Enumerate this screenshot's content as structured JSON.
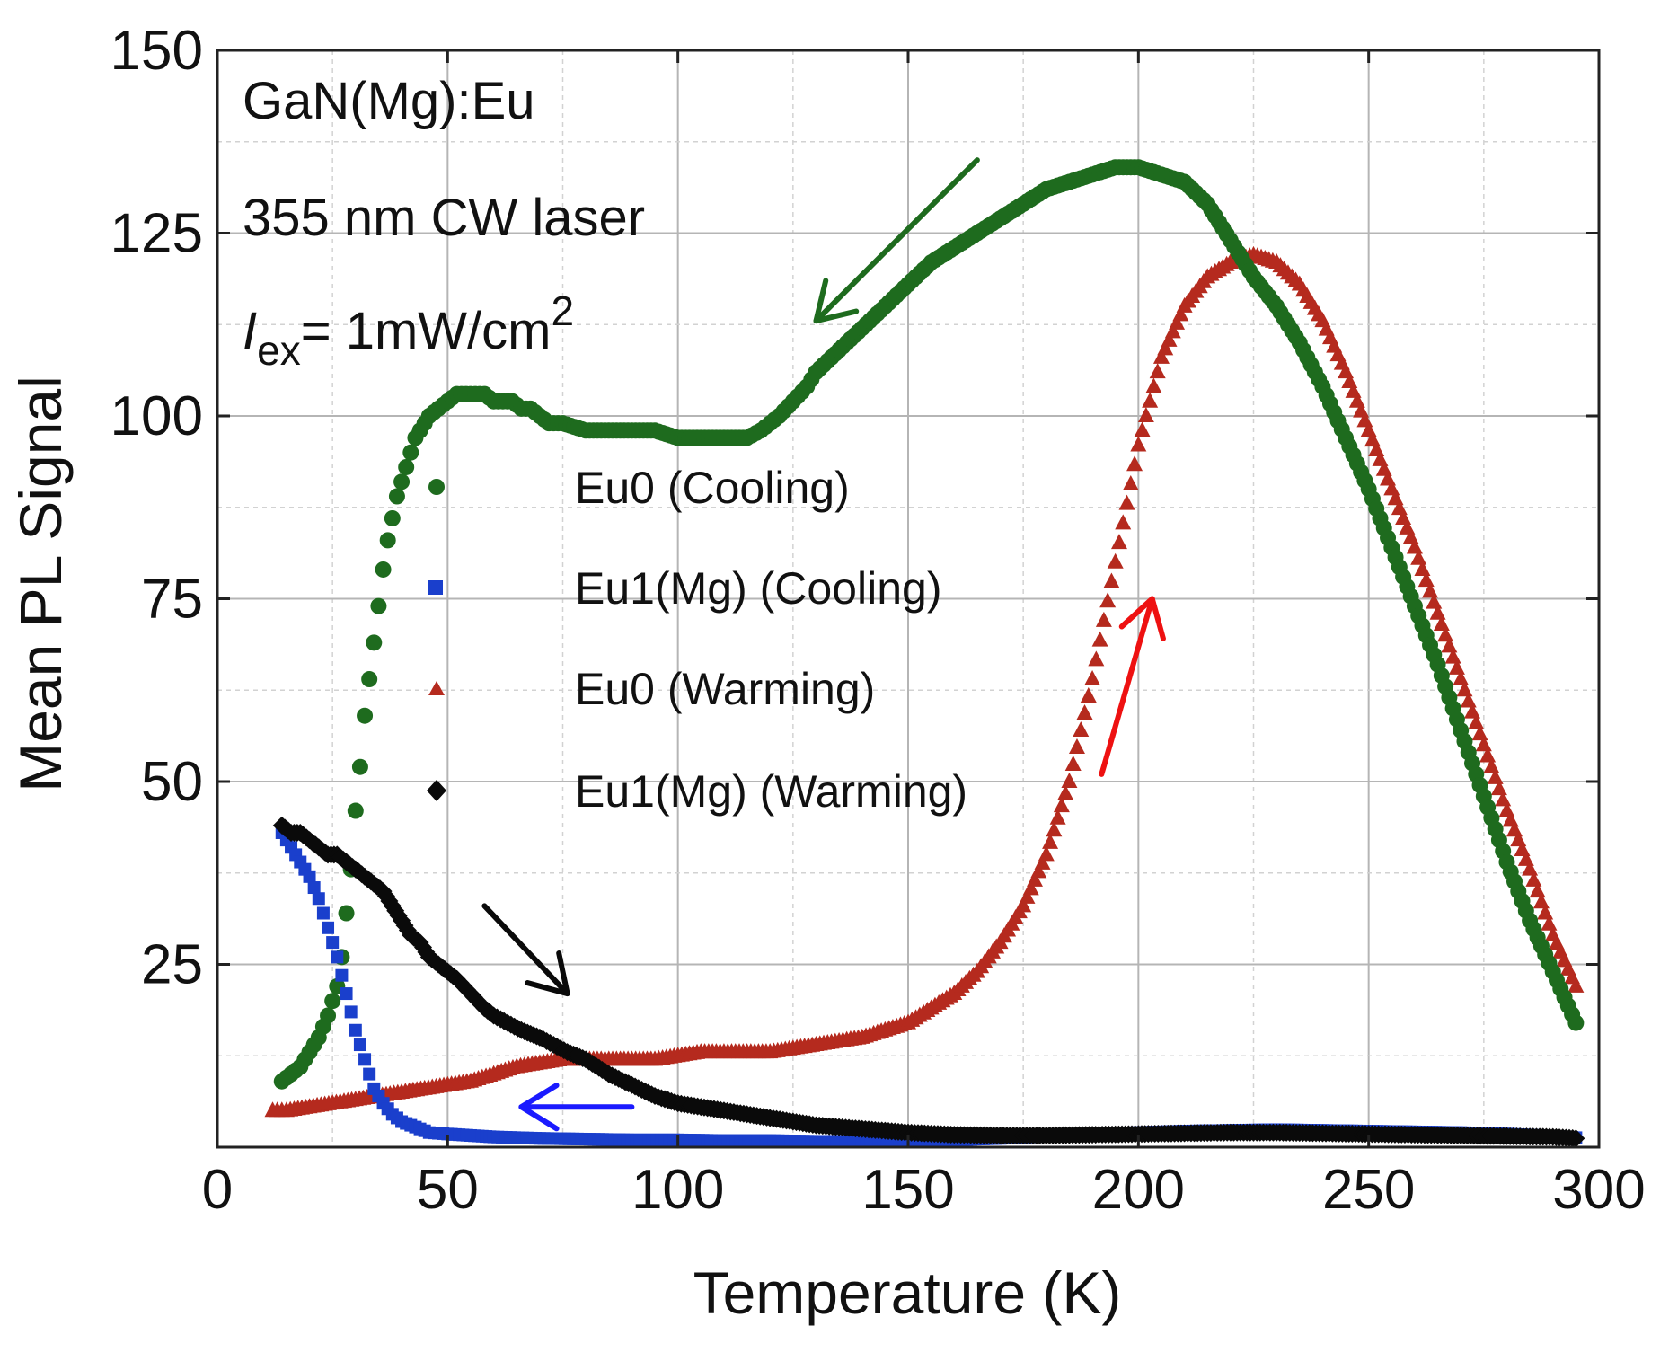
{
  "chart_data": {
    "type": "scatter",
    "title": "",
    "xlabel": "Temperature (K)",
    "ylabel": "Mean PL Signal",
    "xlim": [
      0,
      300
    ],
    "ylim": [
      0,
      150
    ],
    "x_ticks": [
      0,
      50,
      100,
      150,
      200,
      250,
      300
    ],
    "y_ticks": [
      25,
      50,
      75,
      100,
      125,
      150
    ],
    "x_tick_labels": [
      "0",
      "50",
      "100",
      "150",
      "200",
      "250",
      "300"
    ],
    "y_tick_labels": [
      "25",
      "50",
      "75",
      "100",
      "125",
      "150"
    ],
    "grid": true,
    "legend_position": "center",
    "annotations": {
      "sample": "GaN(Mg):Eu",
      "laser": "355 nm CW laser",
      "intensity_prefix": "I",
      "intensity_sub": "ex",
      "intensity_value": "= 1mW/cm",
      "intensity_sup": "2"
    },
    "series": [
      {
        "name": "Eu0 (Cooling)",
        "marker": "circle",
        "color": "#1e6b1e",
        "arrow_color": "#1e6b1e",
        "x": [
          14,
          16,
          18,
          20,
          22,
          24,
          26,
          27,
          28,
          29,
          30,
          31,
          32,
          33,
          34,
          35,
          36,
          37,
          38,
          39,
          40,
          41,
          42,
          43,
          44,
          45,
          46,
          48,
          50,
          52,
          54,
          56,
          58,
          60,
          62,
          64,
          66,
          68,
          70,
          72,
          75,
          80,
          85,
          90,
          95,
          100,
          105,
          110,
          115,
          118,
          120,
          122,
          125,
          128,
          130,
          135,
          140,
          145,
          150,
          155,
          160,
          165,
          170,
          175,
          180,
          185,
          190,
          195,
          200,
          205,
          210,
          215,
          220,
          225,
          230,
          235,
          240,
          245,
          250,
          255,
          260,
          265,
          270,
          275,
          280,
          285,
          290,
          295
        ],
        "y": [
          9,
          10,
          11,
          13,
          15,
          18,
          22,
          26,
          32,
          38,
          46,
          52,
          59,
          64,
          69,
          74,
          79,
          83,
          86,
          89,
          91,
          93,
          95,
          97,
          98,
          99,
          100,
          101,
          102,
          103,
          103,
          103,
          103,
          102,
          102,
          102,
          101,
          101,
          100,
          99,
          99,
          98,
          98,
          98,
          98,
          97,
          97,
          97,
          97,
          98,
          99,
          100,
          102,
          104,
          106,
          109,
          112,
          115,
          118,
          121,
          123,
          125,
          127,
          129,
          131,
          132,
          133,
          134,
          134,
          133,
          132,
          129,
          124,
          119,
          115,
          110,
          104,
          97,
          90,
          82,
          74,
          66,
          57,
          48,
          39,
          31,
          24,
          17
        ]
      },
      {
        "name": "Eu1(Mg) (Cooling)",
        "marker": "square",
        "color": "#1a3fcc",
        "arrow_color": "#1a1aff",
        "x": [
          14,
          16,
          18,
          20,
          22,
          24,
          26,
          28,
          30,
          32,
          34,
          36,
          38,
          40,
          42,
          44,
          46,
          50,
          55,
          60,
          70,
          80,
          90,
          100,
          110,
          120,
          130,
          140,
          150,
          160,
          170,
          180,
          190,
          200,
          210,
          220,
          230,
          240,
          250,
          260,
          270,
          280,
          290,
          295
        ],
        "y": [
          43,
          41,
          39,
          37,
          34,
          30,
          26,
          21,
          16,
          12,
          8,
          6,
          4.5,
          3.5,
          3,
          2.5,
          2,
          1.8,
          1.6,
          1.4,
          1.2,
          1.1,
          1,
          1,
          0.9,
          0.9,
          0.8,
          0.8,
          0.8,
          1,
          1.2,
          1.5,
          1.8,
          2,
          2.2,
          2.3,
          2.4,
          2.3,
          2.2,
          2.1,
          2,
          1.8,
          1.5,
          1.3
        ]
      },
      {
        "name": "Eu0 (Warming)",
        "marker": "triangle",
        "color": "#b52a1e",
        "arrow_color": "#ee1111",
        "x": [
          12,
          15,
          20,
          25,
          30,
          35,
          40,
          45,
          50,
          55,
          60,
          65,
          70,
          75,
          80,
          85,
          90,
          95,
          100,
          105,
          110,
          115,
          120,
          125,
          130,
          135,
          140,
          145,
          150,
          155,
          160,
          165,
          170,
          175,
          180,
          185,
          190,
          195,
          200,
          205,
          210,
          215,
          220,
          225,
          230,
          235,
          240,
          245,
          250,
          255,
          260,
          265,
          270,
          275,
          280,
          285,
          290,
          295
        ],
        "y": [
          5,
          5,
          5.5,
          6,
          6.5,
          7,
          7.5,
          8,
          8.5,
          9,
          10,
          11,
          11.5,
          12,
          12,
          12,
          12,
          12,
          12.5,
          13,
          13,
          13,
          13,
          13.5,
          14,
          14.5,
          15,
          16,
          17,
          19,
          21,
          24,
          28,
          33,
          40,
          50,
          64,
          80,
          96,
          108,
          115,
          119,
          121,
          122,
          121,
          118,
          113,
          106,
          98,
          90,
          82,
          73,
          64,
          55,
          46,
          38,
          29,
          22
        ]
      },
      {
        "name": "Eu1(Mg) (Warming)",
        "marker": "diamond",
        "color": "#0a0a0a",
        "arrow_color": "#0a0a0a",
        "x": [
          14,
          16,
          18,
          20,
          22,
          24,
          26,
          28,
          30,
          32,
          34,
          36,
          38,
          40,
          42,
          44,
          46,
          48,
          50,
          52,
          55,
          58,
          60,
          63,
          66,
          70,
          73,
          76,
          80,
          85,
          90,
          95,
          100,
          105,
          110,
          115,
          120,
          125,
          130,
          140,
          150,
          160,
          170,
          180,
          190,
          200,
          210,
          220,
          230,
          240,
          250,
          260,
          270,
          280,
          290,
          295
        ],
        "y": [
          44,
          43,
          43,
          42,
          41,
          40,
          40,
          39,
          38,
          37,
          36,
          35,
          33,
          31,
          29,
          28,
          26,
          25,
          24,
          23,
          21,
          19,
          18,
          17,
          16,
          15,
          14,
          13,
          12,
          10,
          8.5,
          7,
          6,
          5.5,
          5,
          4.5,
          4,
          3.5,
          3,
          2.5,
          2,
          1.7,
          1.6,
          1.6,
          1.7,
          1.8,
          1.9,
          2,
          2,
          1.9,
          1.8,
          1.7,
          1.6,
          1.5,
          1.4,
          1.2
        ]
      }
    ],
    "arrows": [
      {
        "series": "Eu0 (Cooling)",
        "from": [
          165,
          135
        ],
        "to": [
          130,
          113
        ]
      },
      {
        "series": "Eu0 (Warming)",
        "from": [
          192,
          51
        ],
        "to": [
          203,
          75
        ]
      },
      {
        "series": "Eu1(Mg) (Warming)",
        "from": [
          58,
          33
        ],
        "to": [
          76,
          21
        ]
      },
      {
        "series": "Eu1(Mg) (Cooling)",
        "from": [
          90,
          5.5
        ],
        "to": [
          66,
          5.5
        ]
      }
    ]
  }
}
